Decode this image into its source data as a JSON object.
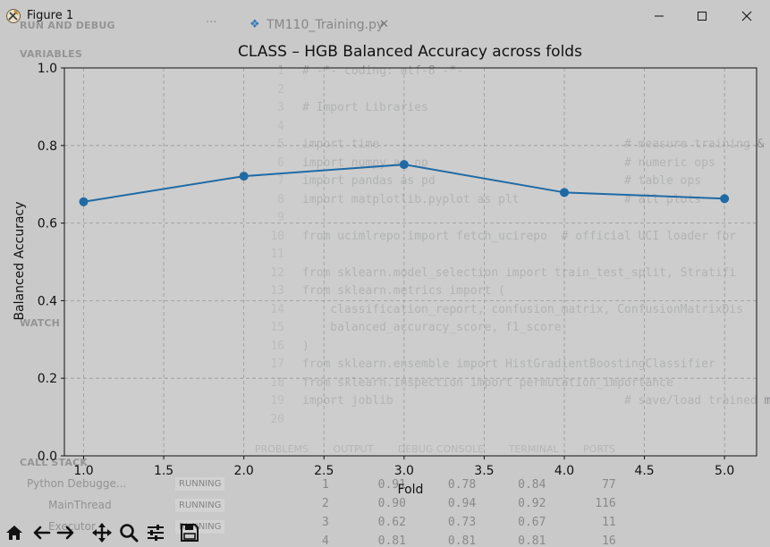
{
  "window": {
    "title": "Figure 1"
  },
  "chart_data": {
    "type": "line",
    "title": "CLASS – HGB Balanced Accuracy across folds",
    "xlabel": "Fold",
    "ylabel": "Balanced Accuracy",
    "x": [
      1,
      2,
      3,
      4,
      5
    ],
    "series": [
      {
        "values": [
          0.655,
          0.721,
          0.751,
          0.679,
          0.663
        ]
      }
    ],
    "xlim": [
      0.88,
      5.2
    ],
    "ylim": [
      0.0,
      1.0
    ],
    "xticks": [
      1.0,
      1.5,
      2.0,
      2.5,
      3.0,
      3.5,
      4.0,
      4.5,
      5.0
    ],
    "xtick_labels": [
      "1.0",
      "1.5",
      "2.0",
      "2.5",
      "3.0",
      "3.5",
      "4.0",
      "4.5",
      "5.0"
    ],
    "yticks": [
      0.0,
      0.2,
      0.4,
      0.6,
      0.8,
      1.0
    ],
    "ytick_labels": [
      "0.0",
      "0.2",
      "0.4",
      "0.6",
      "0.8",
      "1.0"
    ],
    "grid": true,
    "line_color": "#1f6aa5",
    "marker_color": "#1f6aa5",
    "axes_background": "#cfcfcf"
  },
  "toolbar": {
    "icons": [
      "home-icon",
      "back-icon",
      "forward-icon",
      "pan-icon",
      "zoom-icon",
      "configure-subplots-icon",
      "save-icon"
    ]
  },
  "background": {
    "debug_header": "RUN AND DEBUG",
    "variables_header": "VARIABLES",
    "watch_header": "WATCH",
    "call_stack_header": "CALL STACK",
    "call_stack_items": [
      {
        "label": "Python Debugge...",
        "status": "RUNNING"
      },
      {
        "label": "MainThread",
        "status": "RUNNING"
      },
      {
        "label": "Executor",
        "status": "RUNNING"
      }
    ],
    "editor_tab": "TM110_Training.py",
    "code_lines": [
      "# -*- coding: utf-8 -*-",
      "",
      "# Import Libraries",
      "",
      "import time                                   # measure training & prediction time",
      "import numpy as np                            # numeric ops",
      "import pandas as pd                           # table ops",
      "import matplotlib.pyplot as plt               # all plots",
      "",
      "from ucimlrepo import fetch_ucirepo  # official UCI loader for",
      "",
      "from sklearn.model_selection import train_test_split, Stratifi",
      "from sklearn.metrics import (",
      "    classification_report, confusion_matrix, ConfusionMatrixDis",
      "    balanced_accuracy_score, f1_score",
      ")",
      "from sklearn.ensemble import HistGradientBoostingClassifier",
      "from sklearn.inspection import permutation_importance",
      "import joblib                                 # save/load trained models",
      ""
    ],
    "panel_tabs": [
      "PROBLEMS",
      "OUTPUT",
      "DEBUG CONSOLE",
      "TERMINAL",
      "PORTS"
    ],
    "terminal_rows": [
      "1       0.91      0.78      0.84        77",
      "2       0.90      0.94      0.92       116",
      "3       0.62      0.73      0.67        11",
      "4       0.81      0.81      0.81        16"
    ]
  }
}
